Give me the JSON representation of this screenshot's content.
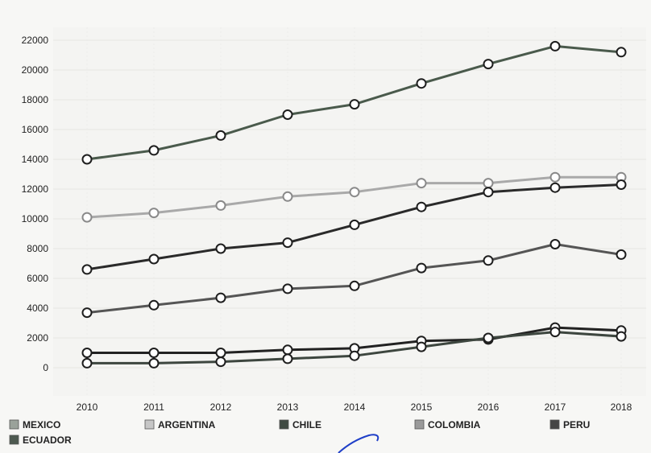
{
  "chart_data": {
    "type": "line",
    "title": "",
    "xlabel": "",
    "ylabel": "",
    "x": [
      "2010",
      "2011",
      "2012",
      "2013",
      "2014",
      "2015",
      "2016",
      "2017",
      "2018"
    ],
    "y_ticks": [
      "22000",
      "20000",
      "18000",
      "16000",
      "14000",
      "12000",
      "10000",
      "8000",
      "6000",
      "4000",
      "2000",
      "0"
    ],
    "ylim": [
      -1000,
      23000
    ],
    "grid": true,
    "legend_position": "bottom",
    "series": [
      {
        "name": "MEXICO",
        "color": "#4a5a4c",
        "swatch": "#9aa29a",
        "values": [
          14000,
          14600,
          15600,
          17000,
          17700,
          19100,
          20400,
          21600,
          21200
        ]
      },
      {
        "name": "ARGENTINA",
        "color": "#a9a9a9",
        "swatch": "#c6c6c6",
        "values": [
          10100,
          10400,
          10900,
          11500,
          11800,
          12400,
          12400,
          12800,
          12800
        ]
      },
      {
        "name": "CHILE",
        "color": "#2a2a2a",
        "swatch": "#3f4a42",
        "values": [
          6600,
          7300,
          8000,
          8400,
          9600,
          10800,
          11800,
          12100,
          12300
        ]
      },
      {
        "name": "COLOMBIA",
        "color": "#555555",
        "swatch": "#9a9a9a",
        "values": [
          3700,
          4200,
          4700,
          5300,
          5500,
          6700,
          7200,
          8300,
          7600
        ]
      },
      {
        "name": "PERU",
        "color": "#222222",
        "swatch": "#454545",
        "values": [
          1000,
          1000,
          1000,
          1200,
          1300,
          1800,
          1900,
          2700,
          2500
        ]
      },
      {
        "name": "ECUADOR",
        "color": "#3d463f",
        "swatch": "#4e5a50",
        "values": [
          300,
          300,
          400,
          600,
          800,
          1400,
          2000,
          2400,
          2100
        ]
      }
    ]
  }
}
